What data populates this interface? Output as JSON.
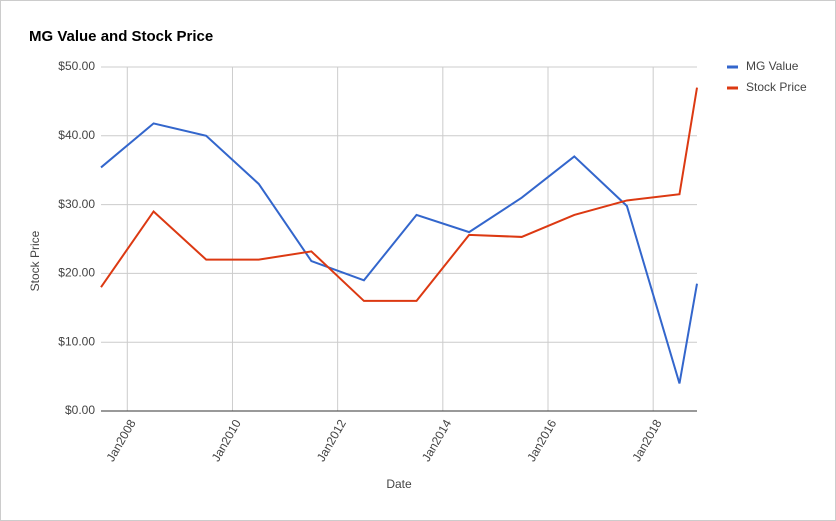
{
  "chart_data": {
    "type": "line",
    "title": "MG Value and Stock Price",
    "x_label": "Date",
    "y_label": "Stock Price",
    "x": [
      "2007-07",
      "2008-07",
      "2009-07",
      "2010-07",
      "2011-07",
      "2012-07",
      "2013-07",
      "2014-07",
      "2015-07",
      "2016-07",
      "2017-07",
      "2018-07",
      "2018-11"
    ],
    "series": [
      {
        "name": "MG Value",
        "color": "#3366cc",
        "values": [
          35.4,
          41.8,
          40.0,
          33.0,
          21.8,
          19.0,
          28.5,
          26.0,
          31.0,
          37.0,
          29.8,
          4.0,
          18.5
        ]
      },
      {
        "name": "Stock Price",
        "color": "#dc3912",
        "values": [
          18.0,
          29.0,
          22.0,
          22.0,
          23.2,
          16.0,
          16.0,
          25.6,
          25.3,
          28.5,
          30.6,
          31.5,
          47.0
        ]
      }
    ],
    "xlim": [
      "2007-07",
      "2018-11"
    ],
    "xticks": [
      {
        "value": "2008-01",
        "label": "Jan2008"
      },
      {
        "value": "2010-01",
        "label": "Jan2010"
      },
      {
        "value": "2012-01",
        "label": "Jan2012"
      },
      {
        "value": "2014-01",
        "label": "Jan2014"
      },
      {
        "value": "2016-01",
        "label": "Jan2016"
      },
      {
        "value": "2018-01",
        "label": "Jan2018"
      }
    ],
    "ylim": [
      0,
      50
    ],
    "yticks": [
      {
        "value": 0,
        "label": "$0.00"
      },
      {
        "value": 10,
        "label": "$10.00"
      },
      {
        "value": 20,
        "label": "$20.00"
      },
      {
        "value": 30,
        "label": "$30.00"
      },
      {
        "value": 40,
        "label": "$40.00"
      },
      {
        "value": 50,
        "label": "$50.00"
      }
    ],
    "grid": true,
    "legend": "right"
  }
}
